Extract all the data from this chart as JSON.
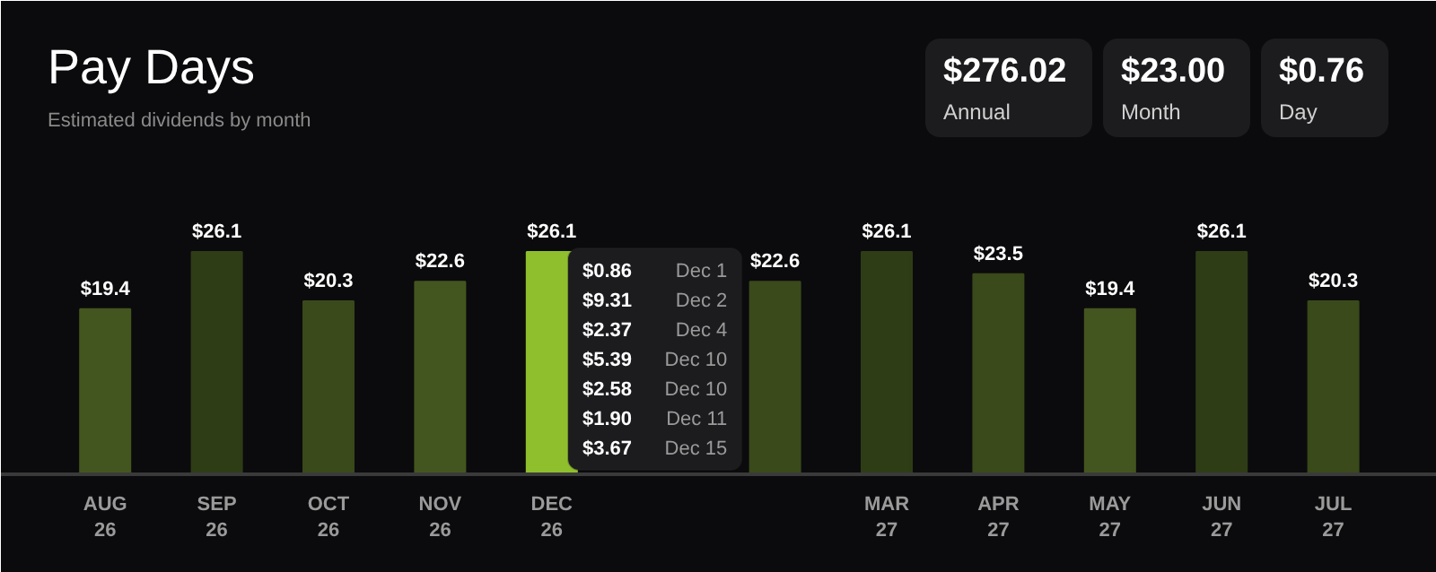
{
  "chart_data": {
    "type": "bar",
    "title": "Pay Days",
    "subtitle": "Estimated dividends by month",
    "categories": [
      "AUG\n26",
      "SEP\n26",
      "OCT\n26",
      "NOV\n26",
      "DEC\n26",
      null,
      null,
      "MAR\n27",
      "APR\n27",
      "MAY\n27",
      "JUN\n27",
      "JUL\n27"
    ],
    "values": [
      19.4,
      26.1,
      20.3,
      22.6,
      26.1,
      null,
      22.6,
      26.1,
      23.5,
      19.4,
      26.1,
      20.3
    ],
    "value_labels": [
      "$19.4",
      "$26.1",
      "$20.3",
      "$22.6",
      "$26.1",
      null,
      "$22.6",
      "$26.1",
      "$23.5",
      "$19.4",
      "$26.1",
      "$20.3"
    ],
    "colors": [
      "#44561f",
      "#2f3d17",
      "#3a4a1b",
      "#44561f",
      "#8fbf2c",
      "#3a4a1b",
      "#3a4a1b",
      "#2f3d17",
      "#3a4a1b",
      "#44561f",
      "#2f3d17",
      "#3a4a1b"
    ],
    "annotations": [
      "$276.02 Annual",
      "$23.00 Month",
      "$0.76 Day",
      "$0.86 Dec 1",
      "$9.31 Dec 2",
      "$2.37 Dec 4",
      "$5.39 Dec 10",
      "$2.58 Dec 10",
      "$1.90 Dec 11",
      "$3.67 Dec 15"
    ],
    "grid": false
  }
}
